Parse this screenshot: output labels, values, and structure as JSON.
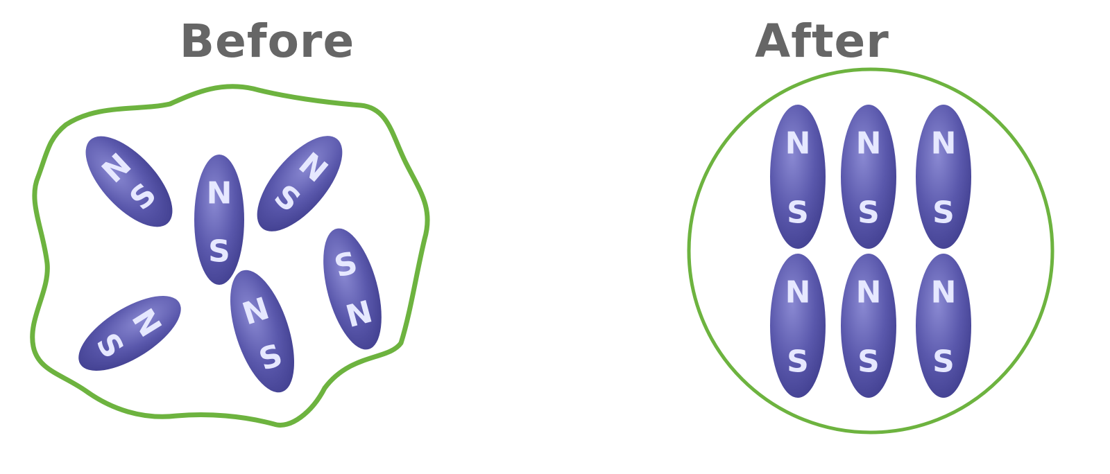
{
  "panels": {
    "before": {
      "title": "Before"
    },
    "after": {
      "title": "After"
    }
  },
  "poles": {
    "north": "N",
    "south": "S"
  },
  "domains": {
    "before_count": 6,
    "after_count": 6,
    "before_state": "random orientations",
    "after_state": "aligned, N at top"
  },
  "colors": {
    "domain_fill": "#4c4a9e",
    "domain_highlight": "#8a89d2",
    "pole_label": "#e6e8ff",
    "boundary": "#6db33f",
    "title": "#666666"
  }
}
